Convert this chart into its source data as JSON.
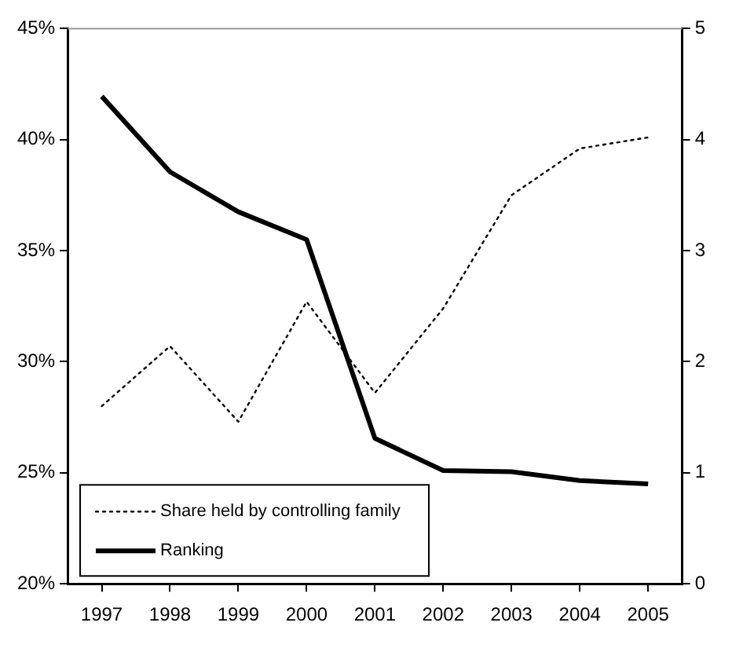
{
  "chart_data": {
    "type": "line",
    "x": [
      1997,
      1998,
      1999,
      2000,
      2001,
      2002,
      2003,
      2004,
      2005
    ],
    "xlim": [
      1996.5,
      2005.5
    ],
    "xticks": [
      1997,
      1998,
      1999,
      2000,
      2001,
      2002,
      2003,
      2004,
      2005
    ],
    "ylim": [
      20,
      45
    ],
    "yticks": [
      {
        "value": 20,
        "label": "20%"
      },
      {
        "value": 25,
        "label": "25%"
      },
      {
        "value": 30,
        "label": "30%"
      },
      {
        "value": 35,
        "label": "35%"
      },
      {
        "value": 40,
        "label": "40%"
      },
      {
        "value": 45,
        "label": "45%"
      }
    ],
    "y2lim": [
      0,
      5
    ],
    "y2ticks": [
      0,
      1,
      2,
      3,
      4,
      5
    ],
    "grid": false,
    "legend": "bottom left",
    "marker": "none",
    "series": [
      {
        "name": "Share held by controlling family",
        "color": "#000000",
        "line_style": "dotted",
        "values": [
          28.0,
          30.7,
          27.3,
          32.7,
          28.6,
          32.4,
          37.5,
          39.6,
          40.1
        ]
      },
      {
        "name": "Ranking",
        "color": "#000000",
        "line_style": "solid",
        "axis": "y2",
        "values": [
          4.39,
          3.71,
          3.35,
          3.1,
          1.31,
          1.02,
          1.01,
          0.93,
          0.9
        ]
      }
    ]
  }
}
